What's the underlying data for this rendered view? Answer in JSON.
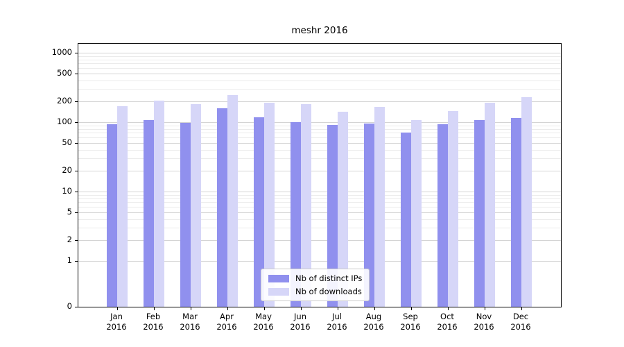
{
  "title": "meshr 2016",
  "chart_data": {
    "type": "bar",
    "title": "meshr 2016",
    "categories": [
      "Jan",
      "Feb",
      "Mar",
      "Apr",
      "May",
      "Jun",
      "Jul",
      "Aug",
      "Sep",
      "Oct",
      "Nov",
      "Dec"
    ],
    "year": "2016",
    "x_tick_labels": [
      "Jan 2016",
      "Feb 2016",
      "Mar 2016",
      "Apr 2016",
      "May 2016",
      "Jun 2016",
      "Jul 2016",
      "Aug 2016",
      "Sep 2016",
      "Oct 2016",
      "Nov 2016",
      "Dec 2016"
    ],
    "series": [
      {
        "name": "Nb of distinct IPs",
        "color": "#9090ee",
        "values": [
          94,
          107,
          98,
          158,
          117,
          100,
          91,
          95,
          70,
          93,
          106,
          116
        ]
      },
      {
        "name": "Nb of downloads",
        "color": "#d6d6f8",
        "values": [
          170,
          204,
          182,
          245,
          191,
          182,
          141,
          166,
          107,
          145,
          191,
          229
        ]
      }
    ],
    "yscale": "symlog",
    "yticks": [
      0,
      1,
      2,
      5,
      10,
      20,
      50,
      100,
      200,
      500,
      1000
    ],
    "ylim": [
      0,
      1450
    ],
    "grid": true,
    "legend_position": "lower center"
  }
}
